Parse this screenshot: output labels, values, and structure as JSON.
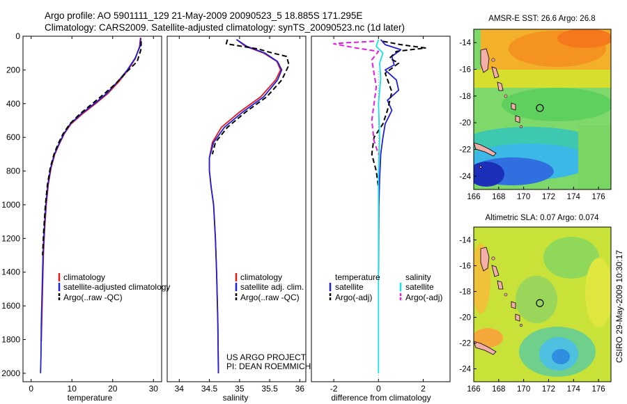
{
  "figure": {
    "title_line1": "Argo profile: AO 5901111_129 21-May-2009 20090523_5 18.885S 171.295E",
    "title_line2": "Climatology: CARS2009. Satellite-adjusted climatology: synTS_20090523.nc (1d later)",
    "side_label": "CSIRO 29-May-2009 10:30:17",
    "credit_line1": "US ARGO PROJECT",
    "credit_line2": "PI: DEAN ROEMMICH"
  },
  "chart_data": [
    {
      "type": "line",
      "id": "temperature",
      "xlabel": "temperature",
      "ylabel": "",
      "xlim": [
        -2,
        32
      ],
      "ylim": [
        2050,
        0
      ],
      "xticks": [
        0,
        10,
        20,
        30
      ],
      "yticks": [
        0,
        200,
        400,
        600,
        800,
        1000,
        1200,
        1400,
        1600,
        1800,
        2000
      ],
      "legend": [
        "climatology",
        "satellite-adjusted climatology",
        "Argo(..raw -QC)"
      ],
      "series": [
        {
          "name": "climatology",
          "color": "#e0191c",
          "dash": "solid",
          "x": [
            26.8,
            26.6,
            25.6,
            23.8,
            21.5,
            18.8,
            15.8,
            12.6,
            9.8,
            8.1,
            6.9,
            5.8,
            4.9,
            4.2,
            3.7,
            3.3,
            3.0,
            2.8,
            2.6,
            2.5
          ],
          "y": [
            10,
            60,
            130,
            200,
            270,
            340,
            400,
            460,
            520,
            580,
            640,
            700,
            780,
            880,
            1000,
            1150,
            1300,
            1500,
            1700,
            1810
          ]
        },
        {
          "name": "satellite-adjusted climatology",
          "color": "#1f1fd6",
          "dash": "solid",
          "x": [
            26.9,
            26.7,
            25.5,
            23.6,
            21.2,
            18.5,
            15.5,
            12.3,
            9.6,
            8.0,
            6.8,
            5.7,
            4.8,
            4.1,
            3.6,
            3.2,
            2.9,
            2.7,
            2.5,
            2.4,
            2.3
          ],
          "y": [
            10,
            60,
            130,
            200,
            270,
            340,
            400,
            460,
            520,
            580,
            640,
            700,
            780,
            880,
            1000,
            1150,
            1300,
            1500,
            1700,
            1900,
            2000
          ]
        },
        {
          "name": "Argo(..raw -QC)",
          "color": "#000000",
          "dash": "dashed",
          "x": [
            27.0,
            26.9,
            26.0,
            23.5,
            20.8,
            18.0,
            15.0,
            12.0,
            9.5,
            7.8,
            6.6,
            5.6,
            4.7,
            4.0,
            3.5,
            3.1,
            2.8
          ],
          "y": [
            30,
            80,
            150,
            210,
            280,
            340,
            400,
            460,
            520,
            580,
            640,
            700,
            780,
            880,
            1000,
            1150,
            1300
          ]
        }
      ]
    },
    {
      "type": "line",
      "id": "salinity",
      "xlabel": "salinity",
      "ylabel": "",
      "xlim": [
        33.8,
        36.1
      ],
      "ylim": [
        2050,
        0
      ],
      "xticks": [
        34,
        34.5,
        35,
        35.5,
        36
      ],
      "yticks": [],
      "legend": [
        "climatology",
        "satellite adj. clim.",
        "Argo(..raw -QC)"
      ],
      "series": [
        {
          "name": "climatology",
          "color": "#e0191c",
          "dash": "solid",
          "x": [
            34.95,
            35.1,
            35.4,
            35.62,
            35.68,
            35.6,
            35.35,
            35.0,
            34.7,
            34.55,
            34.5,
            34.5,
            34.53,
            34.57,
            34.6,
            34.62,
            34.64,
            34.65
          ],
          "y": [
            20,
            60,
            100,
            150,
            200,
            260,
            360,
            450,
            540,
            630,
            720,
            800,
            900,
            1000,
            1200,
            1400,
            1700,
            2000
          ]
        },
        {
          "name": "satellite adj. clim.",
          "color": "#1f1fd6",
          "dash": "solid",
          "x": [
            34.95,
            35.12,
            35.42,
            35.63,
            35.7,
            35.63,
            35.4,
            35.05,
            34.75,
            34.57,
            34.5,
            34.5,
            34.53,
            34.57,
            34.6,
            34.62,
            34.64,
            34.65
          ],
          "y": [
            20,
            60,
            100,
            150,
            200,
            260,
            360,
            450,
            540,
            630,
            720,
            800,
            900,
            1000,
            1200,
            1400,
            1700,
            2000
          ]
        },
        {
          "name": "Argo(..raw -QC)",
          "color": "#000000",
          "dash": "dashed",
          "x": [
            34.8,
            34.78,
            35.3,
            35.55,
            35.78,
            35.82,
            35.7,
            35.45,
            35.1,
            34.8,
            34.6,
            34.55
          ],
          "y": [
            20,
            45,
            75,
            100,
            120,
            170,
            260,
            360,
            450,
            540,
            630,
            700
          ]
        }
      ]
    },
    {
      "type": "line",
      "id": "difference",
      "xlabel": "difference from climatology",
      "ylabel": "",
      "xlim": [
        -3,
        3.2
      ],
      "ylim": [
        2050,
        0
      ],
      "xticks": [
        -2,
        0,
        2
      ],
      "yticks": [],
      "legend_groups": [
        {
          "header": "temperature",
          "items": [
            "satellite",
            "Argo(-adj)"
          ]
        },
        {
          "header": "salinity",
          "items": [
            "satellite",
            "Argo(-adj)"
          ]
        }
      ],
      "series": [
        {
          "name": "temperature satellite",
          "color": "#1f1fd6",
          "dash": "solid",
          "x": [
            0.1,
            0.3,
            1.0,
            0.6,
            0.7,
            0.3,
            0.8,
            0.9,
            0.4,
            0.6,
            0.3,
            0.2,
            0.1,
            0.05,
            0.02,
            0.0
          ],
          "y": [
            20,
            50,
            80,
            120,
            170,
            200,
            260,
            320,
            380,
            440,
            520,
            600,
            700,
            850,
            1000,
            1400
          ]
        },
        {
          "name": "temperature Argo(-adj)",
          "color": "#000000",
          "dash": "dashed",
          "x": [
            0.2,
            1.0,
            2.1,
            0.8,
            0.5,
            0.9,
            0.3,
            0.6,
            0.4,
            0.2,
            -0.2,
            -0.3,
            -0.1,
            0.0
          ],
          "y": [
            30,
            50,
            70,
            90,
            130,
            160,
            220,
            330,
            440,
            520,
            600,
            700,
            800,
            900
          ]
        },
        {
          "name": "salinity satellite",
          "color": "#19e0e8",
          "dash": "solid",
          "x": [
            0.0,
            -0.1,
            0.2,
            0.05,
            0.1,
            0.0,
            0.05,
            0.0,
            0.0,
            0.0,
            0.0
          ],
          "y": [
            20,
            60,
            100,
            160,
            250,
            400,
            600,
            800,
            1200,
            1600,
            2000
          ]
        },
        {
          "name": "salinity Argo(-adj)",
          "color": "#e01ee0",
          "dash": "dashed",
          "x": [
            -0.2,
            -1.6,
            -2.0,
            -1.0,
            0.0,
            -0.3,
            -0.1,
            -0.3,
            -0.2,
            0.0
          ],
          "y": [
            30,
            40,
            45,
            70,
            90,
            140,
            300,
            500,
            620,
            700
          ]
        }
      ]
    },
    {
      "type": "heatmap",
      "id": "sst_map",
      "title": "AMSR-E SST: 26.6 Argo: 26.8",
      "xlim": [
        166,
        177
      ],
      "ylim": [
        -25,
        -13
      ],
      "xticks": [
        166,
        168,
        170,
        172,
        174,
        176
      ],
      "yticks": [
        -24,
        -22,
        -20,
        -18,
        -16,
        -14
      ],
      "marker": {
        "lon": 171.3,
        "lat": -18.9
      }
    },
    {
      "type": "heatmap",
      "id": "sla_map",
      "title": "Altimetric SLA: 0.07 Argo: 0.074",
      "xlim": [
        166,
        177
      ],
      "ylim": [
        -25,
        -13
      ],
      "xticks": [
        166,
        168,
        170,
        172,
        174,
        176
      ],
      "yticks": [
        -24,
        -22,
        -20,
        -18,
        -16,
        -14
      ],
      "marker": {
        "lon": 171.3,
        "lat": -18.9
      }
    }
  ]
}
